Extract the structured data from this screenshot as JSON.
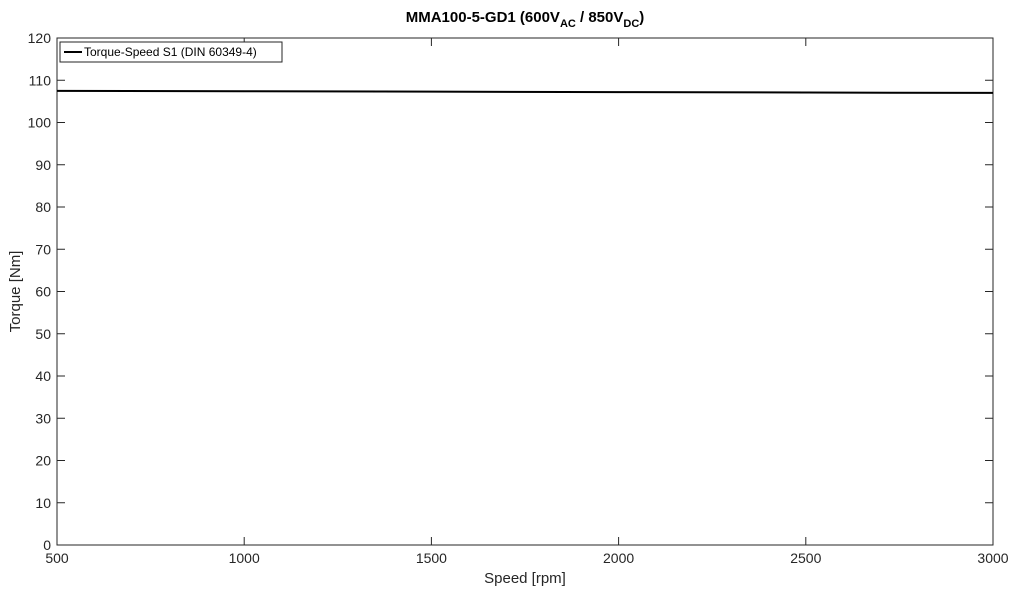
{
  "chart_data": {
    "type": "line",
    "title": {
      "main": "MMA100-5-GD1 (600V",
      "sub1": "AC",
      "mid": " / 850V",
      "sub2": "DC",
      "end": ")"
    },
    "xlabel": "Speed [rpm]",
    "ylabel": "Torque [Nm]",
    "xlim": [
      500,
      3000
    ],
    "ylim": [
      0,
      120
    ],
    "xticks": [
      500,
      1000,
      1500,
      2000,
      2500,
      3000
    ],
    "yticks": [
      0,
      10,
      20,
      30,
      40,
      50,
      60,
      70,
      80,
      90,
      100,
      110,
      120
    ],
    "grid": false,
    "legend_position": "top-left",
    "series": [
      {
        "name": "Torque-Speed S1 (DIN 60349-4)",
        "color": "#000000",
        "x": [
          500,
          1000,
          1500,
          2000,
          2500,
          3000
        ],
        "y": [
          107.5,
          107.4,
          107.3,
          107.2,
          107.1,
          107.0
        ]
      }
    ]
  }
}
